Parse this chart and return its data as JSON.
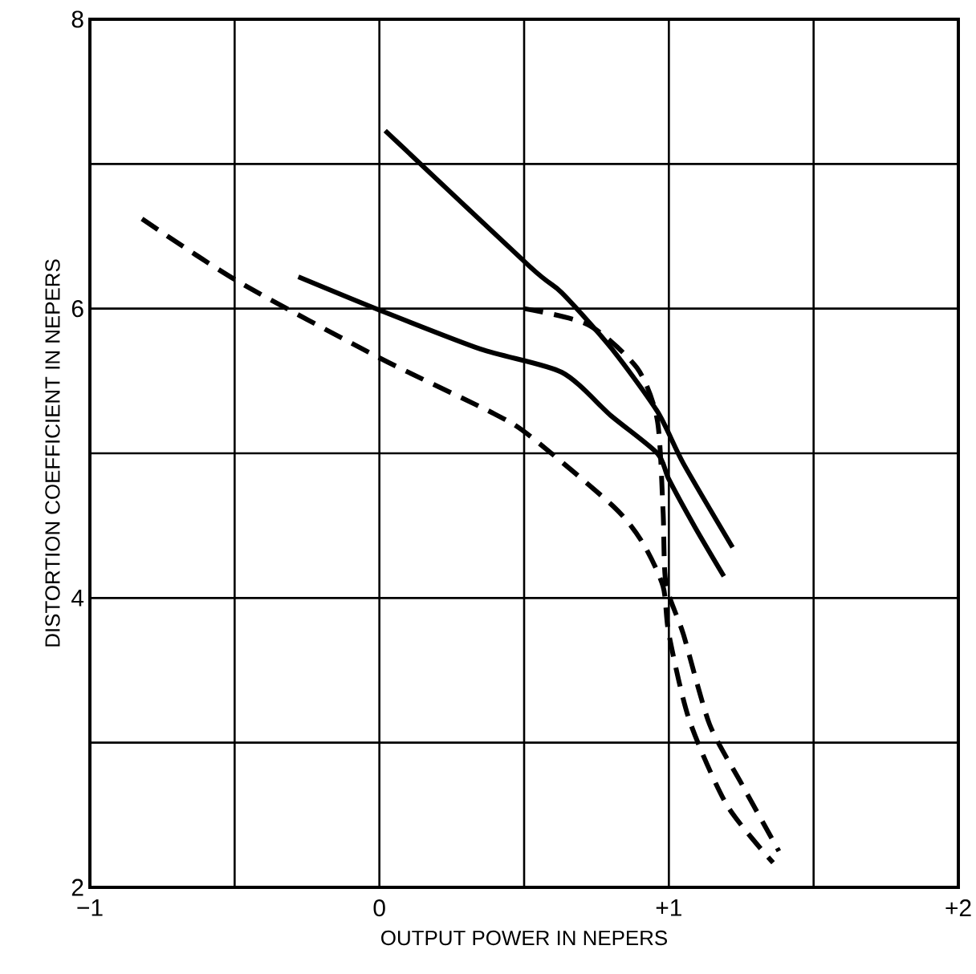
{
  "chart_data": {
    "type": "line",
    "xlabel": "OUTPUT POWER IN NEPERS",
    "ylabel": "DISTORTION COEFFICIENT IN NEPERS",
    "xlim": [
      -1,
      2
    ],
    "ylim": [
      2,
      8
    ],
    "xticks": [
      {
        "value": -1,
        "label": "−1"
      },
      {
        "value": -0.5,
        "label": null
      },
      0,
      {
        "value": 0.5,
        "label": null
      },
      {
        "value": 1,
        "label": "+1"
      },
      {
        "value": 1.5,
        "label": null
      },
      {
        "value": 2,
        "label": "+2"
      }
    ],
    "yticks": [
      2,
      {
        "value": 3,
        "label": null
      },
      4,
      {
        "value": 5,
        "label": null
      },
      6,
      {
        "value": 7,
        "label": null
      },
      8
    ],
    "grid": true,
    "series": [
      {
        "color": "#000000",
        "line_style": "solid",
        "x": [
          0.02,
          0.52,
          0.63,
          0.8,
          0.96,
          1.05,
          1.22
        ],
        "values": [
          7.23,
          6.29,
          6.11,
          5.73,
          5.29,
          4.93,
          4.35
        ]
      },
      {
        "color": "#000000",
        "line_style": "solid",
        "x": [
          -0.28,
          0,
          0.35,
          0.63,
          0.8,
          0.96,
          1.0,
          1.09,
          1.19
        ],
        "values": [
          6.22,
          5.99,
          5.72,
          5.56,
          5.26,
          5.0,
          4.82,
          4.49,
          4.15
        ]
      },
      {
        "color": "#000000",
        "line_style": "dashed",
        "x": [
          -0.82,
          -0.49,
          0,
          0.39,
          0.52,
          0.81,
          0.91,
          0.98,
          1.0,
          1.07,
          1.2,
          1.36
        ],
        "values": [
          6.62,
          6.19,
          5.66,
          5.28,
          5.12,
          4.63,
          4.38,
          4.08,
          3.75,
          3.16,
          2.57,
          2.17
        ]
      },
      {
        "color": "#000000",
        "line_style": "dashed",
        "x": [
          0.5,
          0.72,
          0.89,
          0.96,
          0.98,
          0.99,
          1.05,
          1.14,
          1.25,
          1.38
        ],
        "values": [
          6.0,
          5.89,
          5.59,
          5.23,
          4.6,
          4.1,
          3.75,
          3.13,
          2.72,
          2.25
        ]
      }
    ]
  }
}
